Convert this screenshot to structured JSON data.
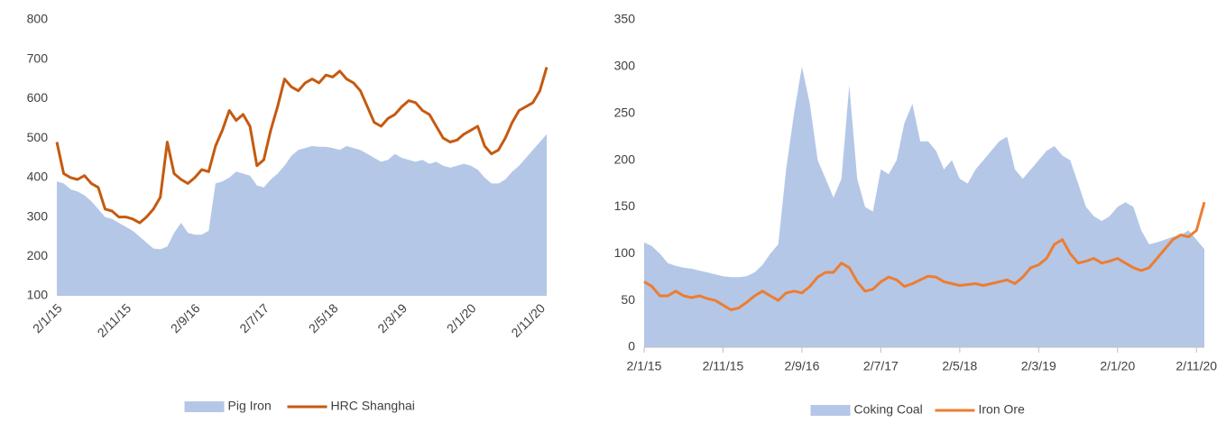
{
  "chart_data": [
    {
      "type": "area_line",
      "x": [
        "2/1/15",
        "2/2/15",
        "2/3/15",
        "2/4/15",
        "2/5/15",
        "2/6/15",
        "2/7/15",
        "2/8/15",
        "2/9/15",
        "2/10/15",
        "2/11/15",
        "2/12/15",
        "2/1/16",
        "2/2/16",
        "2/3/16",
        "2/4/16",
        "2/5/16",
        "2/6/16",
        "2/7/16",
        "2/8/16",
        "2/9/16",
        "2/10/16",
        "2/11/16",
        "2/12/16",
        "2/1/17",
        "2/2/17",
        "2/3/17",
        "2/4/17",
        "2/5/17",
        "2/6/17",
        "2/7/17",
        "2/8/17",
        "2/9/17",
        "2/10/17",
        "2/11/17",
        "2/12/17",
        "2/1/18",
        "2/2/18",
        "2/3/18",
        "2/4/18",
        "2/5/18",
        "2/6/18",
        "2/7/18",
        "2/8/18",
        "2/9/18",
        "2/10/18",
        "2/11/18",
        "2/12/18",
        "2/1/19",
        "2/2/19",
        "2/3/19",
        "2/4/19",
        "2/5/19",
        "2/6/19",
        "2/7/19",
        "2/8/19",
        "2/9/19",
        "2/10/19",
        "2/11/19",
        "2/12/19",
        "2/1/20",
        "2/2/20",
        "2/3/20",
        "2/4/20",
        "2/5/20",
        "2/6/20",
        "2/7/20",
        "2/8/20",
        "2/9/20",
        "2/10/20",
        "2/11/20",
        "2/12/20"
      ],
      "xticks": [
        "2/1/15",
        "2/11/15",
        "2/9/16",
        "2/7/17",
        "2/5/18",
        "2/3/19",
        "2/1/20",
        "2/11/20"
      ],
      "xlabel_rotation": -45,
      "x_axis_line": false,
      "ylim": [
        100,
        800
      ],
      "yticks": [
        100,
        200,
        300,
        400,
        500,
        600,
        700,
        800
      ],
      "series": [
        {
          "name": "Pig Iron",
          "type": "area",
          "color": "#b4c7e7",
          "values": [
            390,
            385,
            370,
            365,
            355,
            340,
            320,
            300,
            295,
            285,
            275,
            265,
            250,
            235,
            220,
            218,
            225,
            260,
            285,
            260,
            255,
            255,
            265,
            385,
            390,
            400,
            415,
            410,
            405,
            380,
            375,
            395,
            410,
            430,
            455,
            470,
            475,
            480,
            478,
            478,
            475,
            470,
            480,
            475,
            470,
            460,
            450,
            440,
            445,
            460,
            450,
            445,
            440,
            445,
            435,
            440,
            430,
            425,
            430,
            435,
            430,
            420,
            400,
            385,
            385,
            395,
            415,
            430,
            450,
            470,
            490,
            510
          ]
        },
        {
          "name": "HRC Shanghai",
          "type": "line",
          "color": "#c55a11",
          "values": [
            490,
            410,
            400,
            395,
            405,
            385,
            375,
            320,
            315,
            300,
            300,
            295,
            285,
            300,
            320,
            350,
            490,
            410,
            395,
            385,
            400,
            420,
            415,
            480,
            520,
            570,
            545,
            560,
            530,
            430,
            445,
            520,
            580,
            650,
            630,
            620,
            640,
            650,
            640,
            660,
            655,
            670,
            650,
            640,
            620,
            580,
            540,
            530,
            550,
            560,
            580,
            595,
            590,
            570,
            560,
            530,
            500,
            490,
            495,
            510,
            520,
            530,
            480,
            460,
            470,
            500,
            540,
            570,
            580,
            590,
            620,
            680
          ]
        }
      ]
    },
    {
      "type": "area_line",
      "x": [
        "2/1/15",
        "2/2/15",
        "2/3/15",
        "2/4/15",
        "2/5/15",
        "2/6/15",
        "2/7/15",
        "2/8/15",
        "2/9/15",
        "2/10/15",
        "2/11/15",
        "2/12/15",
        "2/1/16",
        "2/2/16",
        "2/3/16",
        "2/4/16",
        "2/5/16",
        "2/6/16",
        "2/7/16",
        "2/8/16",
        "2/9/16",
        "2/10/16",
        "2/11/16",
        "2/12/16",
        "2/1/17",
        "2/2/17",
        "2/3/17",
        "2/4/17",
        "2/5/17",
        "2/6/17",
        "2/7/17",
        "2/8/17",
        "2/9/17",
        "2/10/17",
        "2/11/17",
        "2/12/17",
        "2/1/18",
        "2/2/18",
        "2/3/18",
        "2/4/18",
        "2/5/18",
        "2/6/18",
        "2/7/18",
        "2/8/18",
        "2/9/18",
        "2/10/18",
        "2/11/18",
        "2/12/18",
        "2/1/19",
        "2/2/19",
        "2/3/19",
        "2/4/19",
        "2/5/19",
        "2/6/19",
        "2/7/19",
        "2/8/19",
        "2/9/19",
        "2/10/19",
        "2/11/19",
        "2/12/19",
        "2/1/20",
        "2/2/20",
        "2/3/20",
        "2/4/20",
        "2/5/20",
        "2/6/20",
        "2/7/20",
        "2/8/20",
        "2/9/20",
        "2/10/20",
        "2/11/20",
        "2/12/20"
      ],
      "xticks": [
        "2/1/15",
        "2/11/15",
        "2/9/16",
        "2/7/17",
        "2/5/18",
        "2/3/19",
        "2/1/20",
        "2/11/20"
      ],
      "xlabel_rotation": 0,
      "x_axis_line": true,
      "ylim": [
        0,
        350
      ],
      "yticks": [
        0,
        50,
        100,
        150,
        200,
        250,
        300,
        350
      ],
      "series": [
        {
          "name": "Coking Coal",
          "type": "area",
          "color": "#b4c7e7",
          "values": [
            112,
            108,
            100,
            90,
            87,
            85,
            84,
            82,
            80,
            78,
            76,
            75,
            75,
            76,
            80,
            88,
            100,
            110,
            190,
            250,
            300,
            260,
            200,
            180,
            160,
            180,
            280,
            180,
            150,
            145,
            190,
            185,
            200,
            240,
            260,
            220,
            220,
            210,
            190,
            200,
            180,
            175,
            190,
            200,
            210,
            220,
            225,
            190,
            180,
            190,
            200,
            210,
            215,
            205,
            200,
            175,
            150,
            140,
            135,
            140,
            150,
            155,
            150,
            125,
            110,
            112,
            115,
            118,
            120,
            125,
            115,
            105
          ]
        },
        {
          "name": "Iron Ore",
          "type": "line",
          "color": "#ed7d31",
          "values": [
            70,
            65,
            55,
            55,
            60,
            55,
            53,
            55,
            52,
            50,
            45,
            40,
            42,
            48,
            55,
            60,
            55,
            50,
            58,
            60,
            58,
            65,
            75,
            80,
            80,
            90,
            85,
            70,
            60,
            62,
            70,
            75,
            72,
            65,
            68,
            72,
            76,
            75,
            70,
            68,
            66,
            67,
            68,
            66,
            68,
            70,
            72,
            68,
            75,
            85,
            88,
            95,
            110,
            115,
            100,
            90,
            92,
            95,
            90,
            92,
            95,
            90,
            85,
            82,
            85,
            95,
            105,
            115,
            120,
            118,
            125,
            155
          ]
        }
      ]
    }
  ]
}
